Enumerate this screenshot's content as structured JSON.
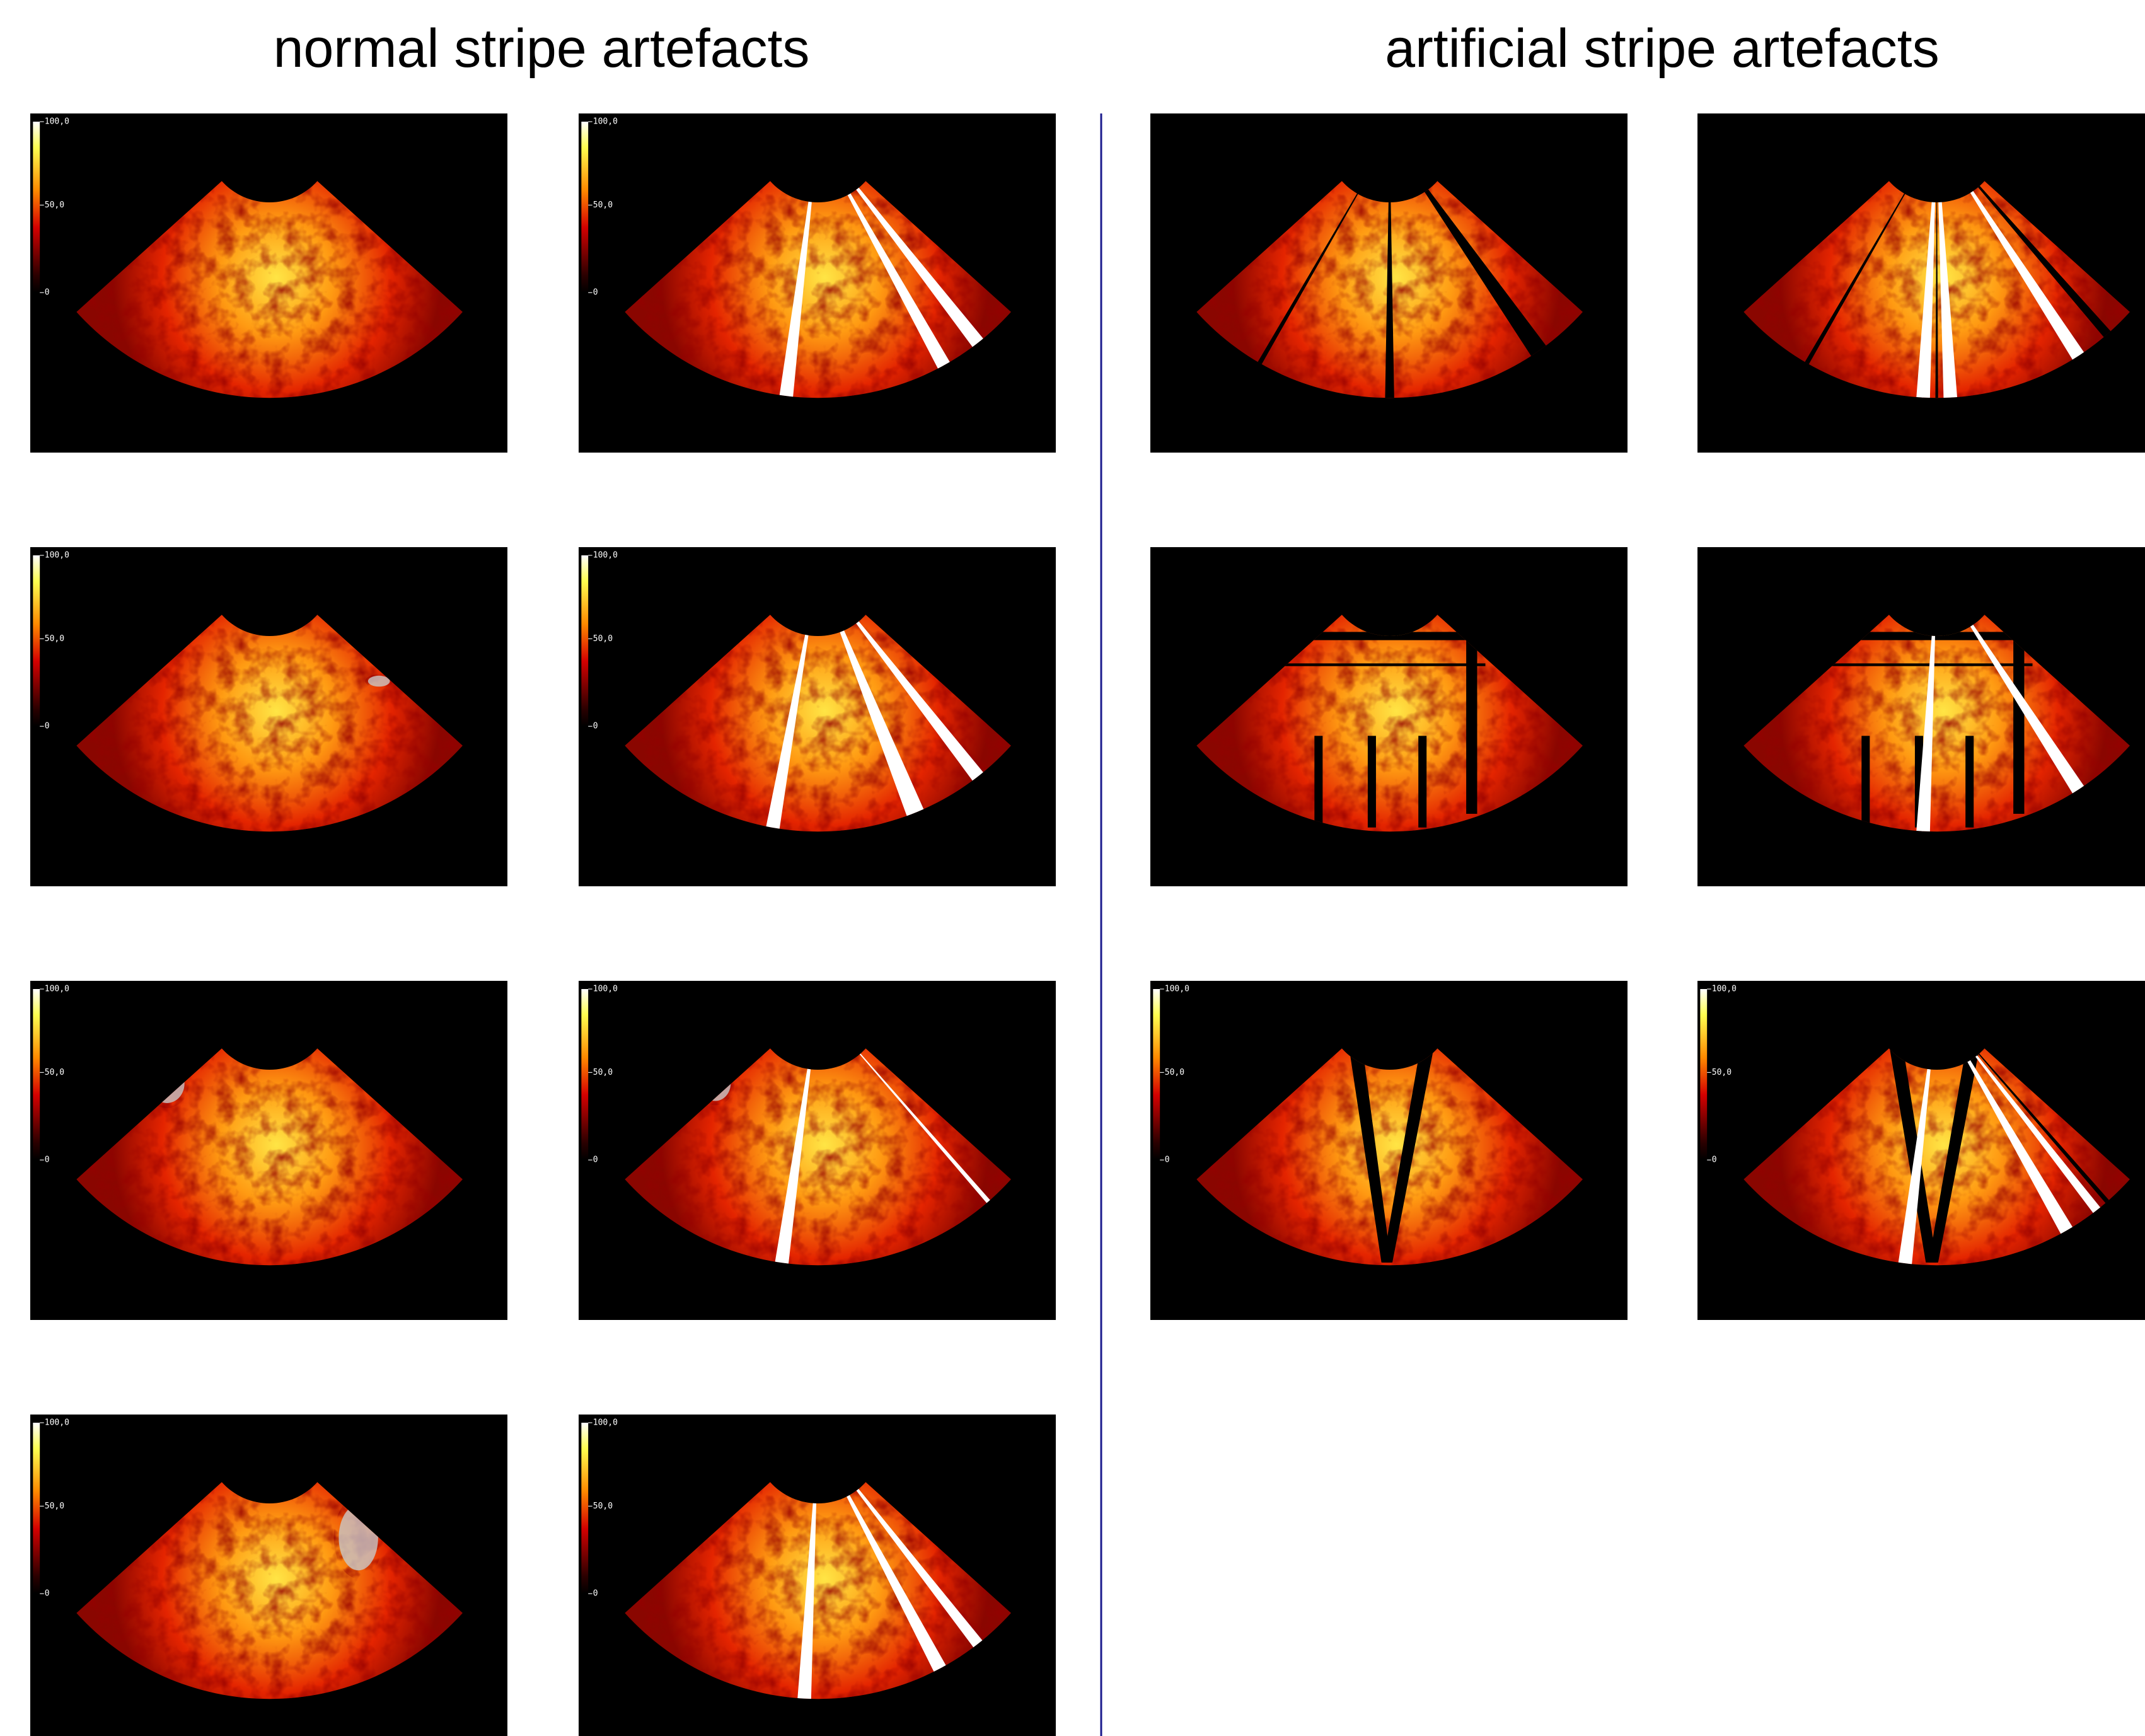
{
  "header": {
    "left_title": "normal stripe artefacts",
    "right_title": "artificial stripe artefacts"
  },
  "colorbar_labels": [
    "100,0",
    "50,0",
    "0"
  ]
}
